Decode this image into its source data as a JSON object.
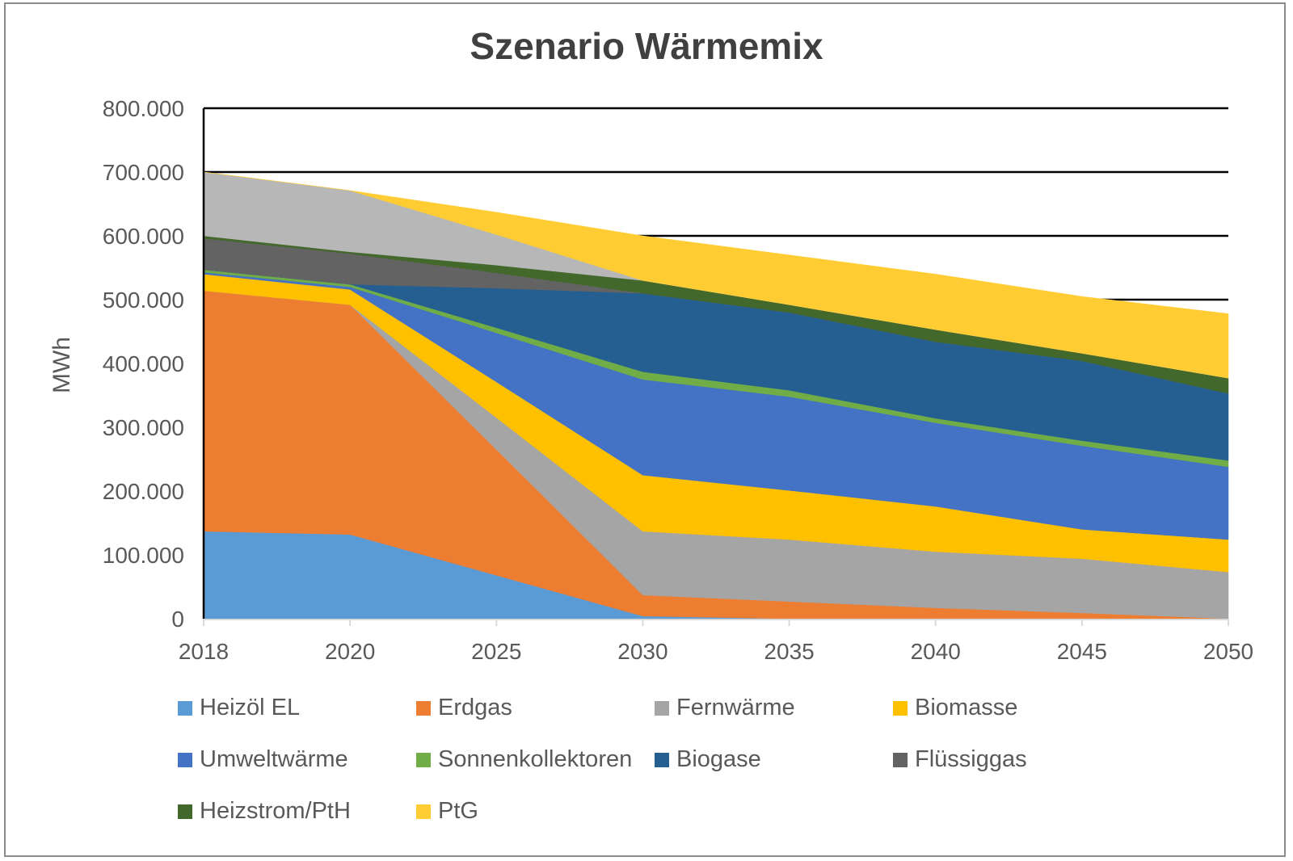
{
  "chart_data": {
    "type": "area",
    "stacked": true,
    "title": "Szenario Wärmemix",
    "xlabel": "",
    "ylabel": "MWh",
    "categories": [
      "2018",
      "2020",
      "2025",
      "2030",
      "2035",
      "2040",
      "2045",
      "2050"
    ],
    "ylim": [
      0,
      800000
    ],
    "yticks": [
      0,
      100000,
      200000,
      300000,
      400000,
      500000,
      600000,
      700000,
      800000
    ],
    "ytick_labels": [
      "0",
      "100.000",
      "200.000",
      "300.000",
      "400.000",
      "500.000",
      "600.000",
      "700.000",
      "800.000"
    ],
    "grid": true,
    "legend_position": "bottom",
    "series": [
      {
        "name": "Heizöl EL",
        "color": "#5B9BD5",
        "values": [
          137000,
          132000,
          68000,
          4000,
          0,
          0,
          0,
          0
        ]
      },
      {
        "name": "Erdgas",
        "color": "#ED7D31",
        "values": [
          377000,
          360000,
          197000,
          33000,
          27000,
          17000,
          9000,
          0
        ]
      },
      {
        "name": "Fernwärme",
        "color": "#A5A5A5",
        "values": [
          0,
          0,
          50000,
          100000,
          97000,
          88000,
          85000,
          73000
        ]
      },
      {
        "name": "Biomasse",
        "color": "#FFC000",
        "values": [
          26000,
          24000,
          56000,
          88000,
          77000,
          71000,
          46000,
          51000
        ]
      },
      {
        "name": "Umweltwärme",
        "color": "#4472C4",
        "values": [
          3000,
          4000,
          77000,
          150000,
          147000,
          131000,
          131000,
          114000
        ]
      },
      {
        "name": "Sonnenkollektoren",
        "color": "#70AD47",
        "values": [
          4000,
          4000,
          8000,
          12000,
          10000,
          7000,
          8000,
          10000
        ]
      },
      {
        "name": "Biogase",
        "color": "#255E91",
        "values": [
          0,
          0,
          62000,
          123000,
          122000,
          120000,
          125000,
          105000
        ]
      },
      {
        "name": "Flüssiggas",
        "color": "#636363",
        "values": [
          49000,
          48000,
          24000,
          0,
          0,
          0,
          0,
          0
        ]
      },
      {
        "name": "Heizstrom/PtH",
        "color": "#43682B",
        "values": [
          4000,
          3000,
          12000,
          20000,
          12000,
          19000,
          12000,
          24000
        ]
      },
      {
        "name": "",
        "color": "#B7B7B7",
        "values": [
          100000,
          96000,
          48000,
          0,
          0,
          0,
          0,
          0
        ],
        "in_legend": false
      },
      {
        "name": "PtG",
        "color": "#FFCD33",
        "values": [
          0,
          0,
          35000,
          70000,
          78000,
          87000,
          89000,
          101000
        ]
      }
    ],
    "legend": [
      "Heizöl EL",
      "Erdgas",
      "Fernwärme",
      "Biomasse",
      "Umweltwärme",
      "Sonnenkollektoren",
      "Biogase",
      "Flüssiggas",
      "Heizstrom/PtH",
      "PtG"
    ]
  }
}
